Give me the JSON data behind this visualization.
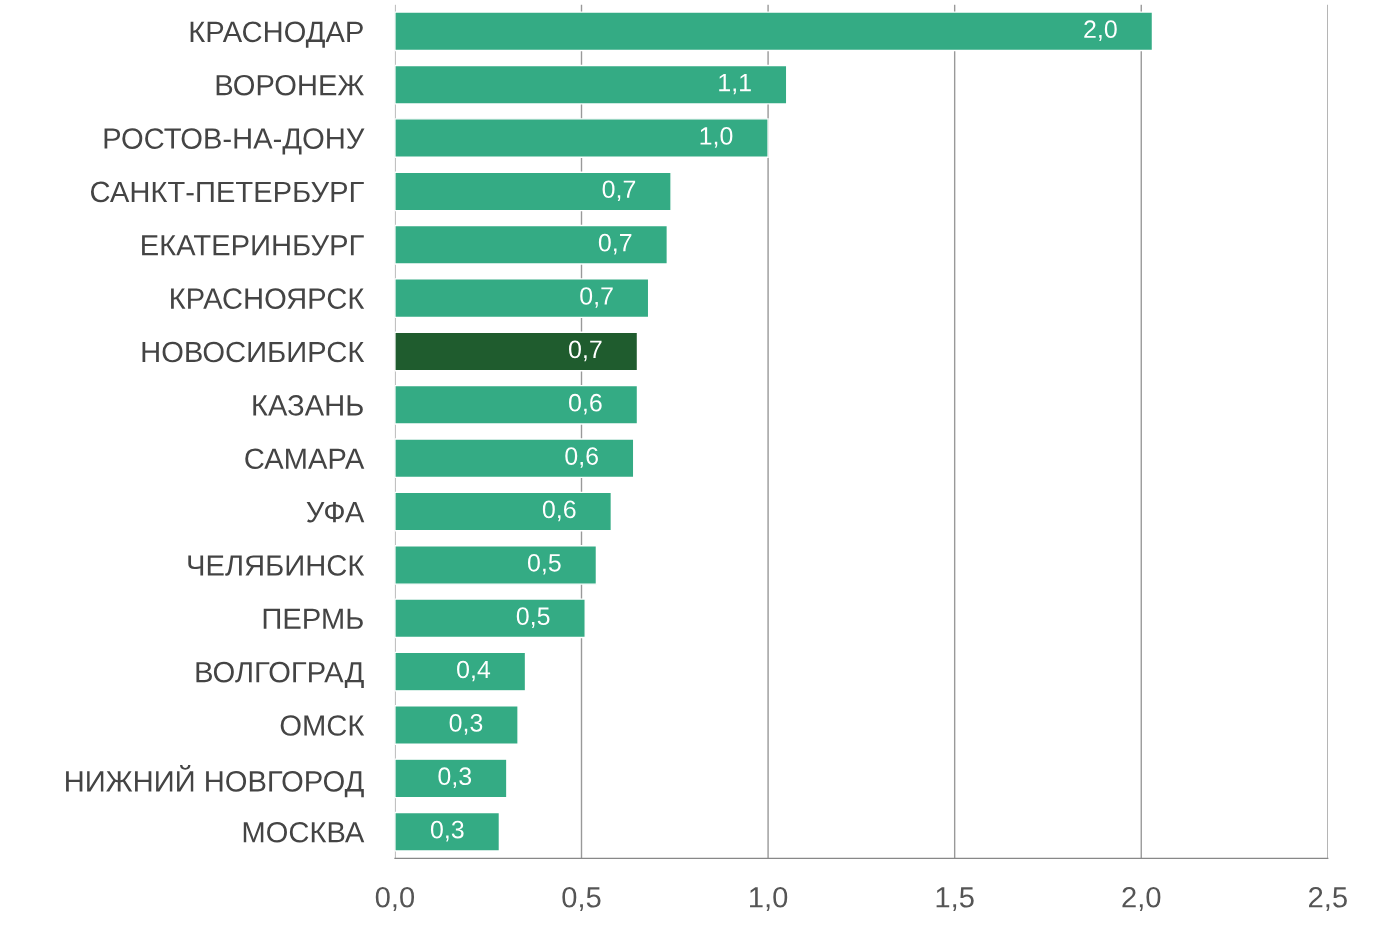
{
  "chart_data": {
    "type": "bar",
    "orientation": "horizontal",
    "categories": [
      "КРАСНОДАР",
      "ВОРОНЕЖ",
      "РОСТОВ-НА-ДОНУ",
      "САНКТ-ПЕТЕРБУРГ",
      "ЕКАТЕРИНБУРГ",
      "КРАСНОЯРСК",
      "НОВОСИБИРСК",
      "КАЗАНЬ",
      "САМАРА",
      "УФА",
      "ЧЕЛЯБИНСК",
      "ПЕРМЬ",
      "ВОЛГОГРАД",
      "ОМСК",
      "НИЖНИЙ НОВГОРОД",
      "МОСКВА"
    ],
    "values": [
      2.03,
      1.05,
      1.0,
      0.74,
      0.73,
      0.68,
      0.65,
      0.65,
      0.64,
      0.58,
      0.54,
      0.51,
      0.35,
      0.33,
      0.3,
      0.28
    ],
    "value_labels": [
      "2,0",
      "1,1",
      "1,0",
      "0,7",
      "0,7",
      "0,7",
      "0,7",
      "0,6",
      "0,6",
      "0,6",
      "0,5",
      "0,5",
      "0,4",
      "0,3",
      "0,3",
      "0,3"
    ],
    "colors": [
      "#34ab84",
      "#34ab84",
      "#34ab84",
      "#34ab84",
      "#34ab84",
      "#34ab84",
      "#1f5c2e",
      "#34ab84",
      "#34ab84",
      "#34ab84",
      "#34ab84",
      "#34ab84",
      "#34ab84",
      "#34ab84",
      "#34ab84",
      "#34ab84"
    ],
    "xlim": [
      0,
      2.5
    ],
    "xticks": [
      {
        "value": 0,
        "label": "0,0"
      },
      {
        "value": 0.5,
        "label": "0,5"
      },
      {
        "value": 1,
        "label": "1,0"
      },
      {
        "value": 1.5,
        "label": "1,5"
      },
      {
        "value": 2,
        "label": "2,0"
      },
      {
        "value": 2.5,
        "label": "2,5"
      }
    ],
    "grid": "x"
  }
}
